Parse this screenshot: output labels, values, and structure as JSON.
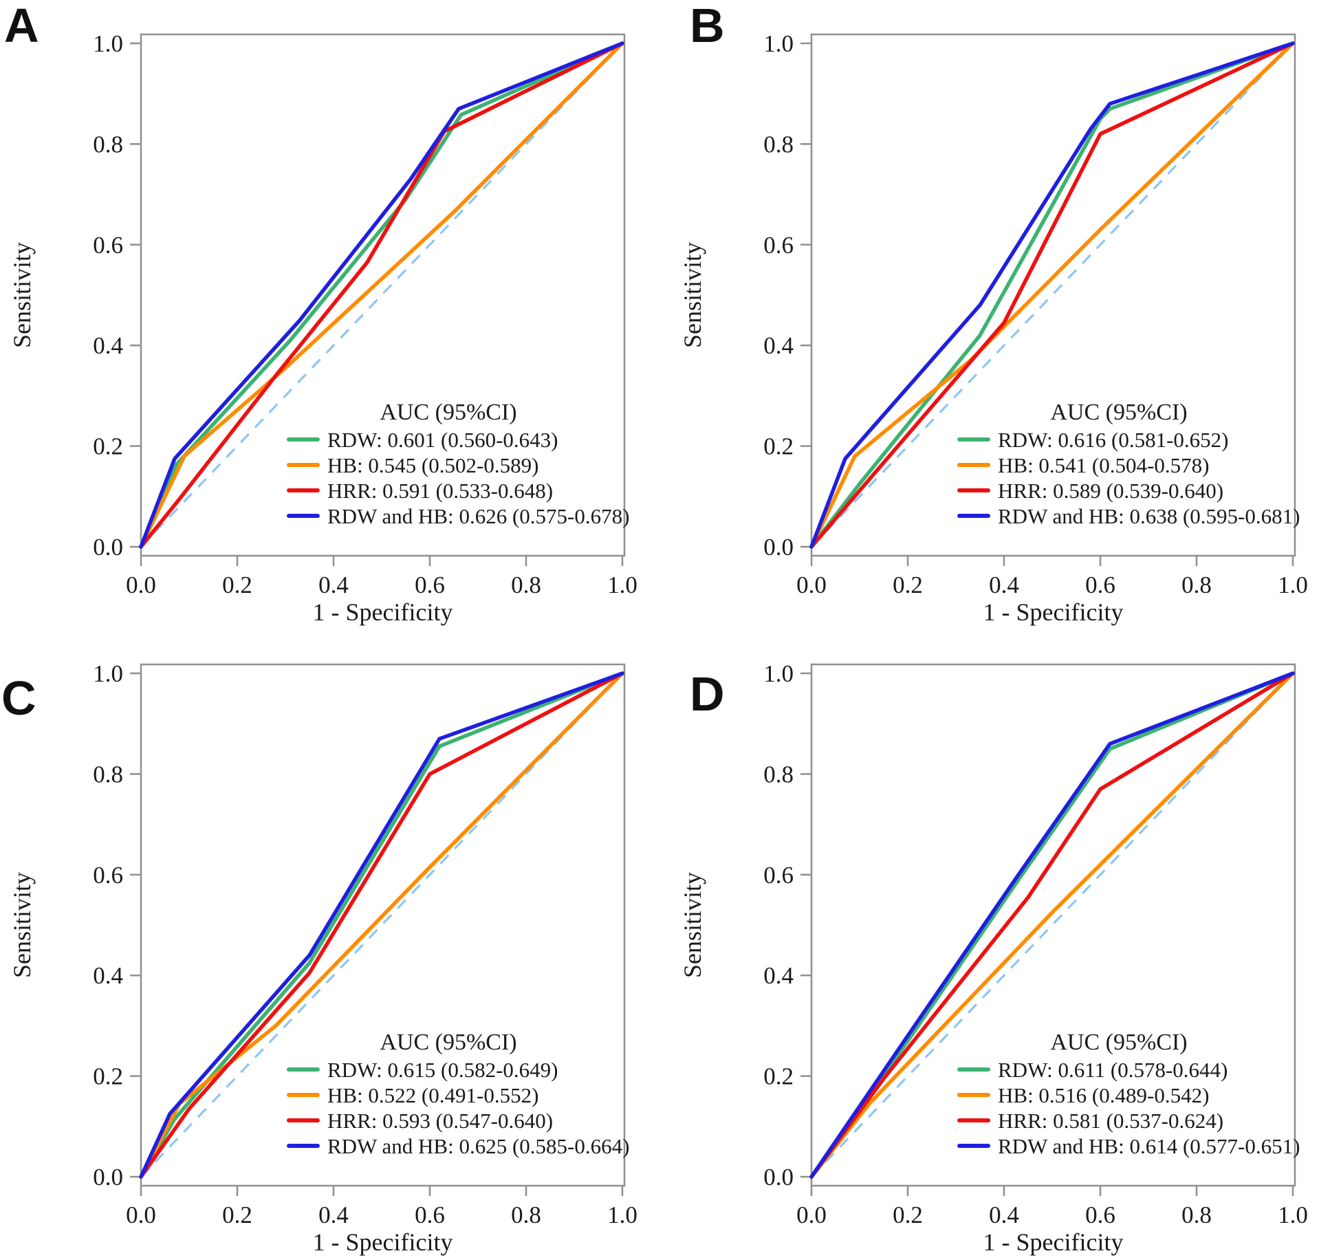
{
  "figure": {
    "background": "#ffffff",
    "panel_labels": [
      "A",
      "B",
      "C",
      "D"
    ]
  },
  "colors": {
    "axis": "#8f8f8f",
    "text": "#1a1a1a",
    "reference_line": "#8ec6f2",
    "rdw": "#3cb371",
    "hb": "#ff8c00",
    "hrr": "#ee1111",
    "rdw_and_hb": "#1f1fe0"
  },
  "axes": {
    "x_label": "1 - Specificity",
    "y_label": "Sensitivity",
    "x_ticks": [
      "0.0",
      "0.2",
      "0.4",
      "0.6",
      "0.8",
      "1.0"
    ],
    "y_ticks": [
      "0.0",
      "0.2",
      "0.4",
      "0.6",
      "0.8",
      "1.0"
    ],
    "x_range": [
      0,
      1
    ],
    "y_range": [
      0,
      1
    ],
    "grid": false
  },
  "legend": {
    "title": "AUC (95%CI)",
    "position": "bottom-right-inside"
  },
  "reference_line": {
    "style": "dashed",
    "from": [
      0,
      0
    ],
    "to": [
      1,
      1
    ]
  },
  "chart_data": [
    {
      "type": "line",
      "panel_label": "A",
      "xlabel": "1 - Specificity",
      "ylabel": "Sensitivity",
      "xlim": [
        0,
        1
      ],
      "ylim": [
        0,
        1
      ],
      "series": [
        {
          "name": "RDW",
          "color": "#3cb371",
          "auc": 0.601,
          "ci": "0.560-0.643",
          "label": "RDW: 0.601 (0.560-0.643)",
          "points": [
            [
              0,
              0
            ],
            [
              0.075,
              0.165
            ],
            [
              0.31,
              0.41
            ],
            [
              0.55,
              0.69
            ],
            [
              0.665,
              0.858
            ],
            [
              1,
              1
            ]
          ]
        },
        {
          "name": "HB",
          "color": "#ff8c00",
          "auc": 0.545,
          "ci": "0.502-0.589",
          "label": "HB: 0.545 (0.502-0.589)",
          "points": [
            [
              0,
              0
            ],
            [
              0.09,
              0.18
            ],
            [
              0.3,
              0.355
            ],
            [
              0.65,
              0.665
            ],
            [
              1,
              1
            ]
          ]
        },
        {
          "name": "HRR",
          "color": "#ee1111",
          "auc": 0.591,
          "ci": "0.533-0.648",
          "label": "HRR: 0.591 (0.533-0.648)",
          "points": [
            [
              0,
              0
            ],
            [
              0.08,
              0.095
            ],
            [
              0.28,
              0.34
            ],
            [
              0.47,
              0.565
            ],
            [
              0.63,
              0.825
            ],
            [
              1,
              1
            ]
          ]
        },
        {
          "name": "RDW and HB",
          "color": "#1f1fe0",
          "auc": 0.626,
          "ci": "0.575-0.678",
          "label": "RDW and HB: 0.626 (0.575-0.678)",
          "points": [
            [
              0,
              0
            ],
            [
              0.07,
              0.175
            ],
            [
              0.33,
              0.45
            ],
            [
              0.56,
              0.73
            ],
            [
              0.66,
              0.87
            ],
            [
              1,
              1
            ]
          ]
        }
      ]
    },
    {
      "type": "line",
      "panel_label": "B",
      "xlabel": "1 - Specificity",
      "ylabel": "Sensitivity",
      "xlim": [
        0,
        1
      ],
      "ylim": [
        0,
        1
      ],
      "series": [
        {
          "name": "RDW",
          "color": "#3cb371",
          "auc": 0.616,
          "ci": "0.581-0.652",
          "label": "RDW: 0.616 (0.581-0.652)",
          "points": [
            [
              0,
              0
            ],
            [
              0.1,
              0.125
            ],
            [
              0.35,
              0.42
            ],
            [
              0.6,
              0.85
            ],
            [
              0.62,
              0.87
            ],
            [
              1,
              1
            ]
          ]
        },
        {
          "name": "HB",
          "color": "#ff8c00",
          "auc": 0.541,
          "ci": "0.504-0.578",
          "label": "HB: 0.541 (0.504-0.578)",
          "points": [
            [
              0,
              0
            ],
            [
              0.09,
              0.18
            ],
            [
              0.33,
              0.37
            ],
            [
              0.6,
              0.63
            ],
            [
              1,
              1
            ]
          ]
        },
        {
          "name": "HRR",
          "color": "#ee1111",
          "auc": 0.589,
          "ci": "0.539-0.640",
          "label": "HRR: 0.589 (0.539-0.640)",
          "points": [
            [
              0,
              0
            ],
            [
              0.13,
              0.145
            ],
            [
              0.4,
              0.445
            ],
            [
              0.6,
              0.82
            ],
            [
              1,
              1
            ]
          ]
        },
        {
          "name": "RDW and HB",
          "color": "#1f1fe0",
          "auc": 0.638,
          "ci": "0.595-0.681",
          "label": "RDW and HB: 0.638 (0.595-0.681)",
          "points": [
            [
              0,
              0
            ],
            [
              0.07,
              0.175
            ],
            [
              0.35,
              0.48
            ],
            [
              0.58,
              0.83
            ],
            [
              0.62,
              0.88
            ],
            [
              1,
              1
            ]
          ]
        }
      ]
    },
    {
      "type": "line",
      "panel_label": "C",
      "xlabel": "1 - Specificity",
      "ylabel": "Sensitivity",
      "xlim": [
        0,
        1
      ],
      "ylim": [
        0,
        1
      ],
      "series": [
        {
          "name": "RDW",
          "color": "#3cb371",
          "auc": 0.615,
          "ci": "0.582-0.649",
          "label": "RDW: 0.615 (0.582-0.649)",
          "points": [
            [
              0,
              0
            ],
            [
              0.07,
              0.115
            ],
            [
              0.35,
              0.425
            ],
            [
              0.62,
              0.855
            ],
            [
              1,
              1
            ]
          ]
        },
        {
          "name": "HB",
          "color": "#ff8c00",
          "auc": 0.522,
          "ci": "0.491-0.552",
          "label": "HB: 0.522 (0.491-0.552)",
          "points": [
            [
              0,
              0
            ],
            [
              0.08,
              0.145
            ],
            [
              0.28,
              0.3
            ],
            [
              0.6,
              0.615
            ],
            [
              1,
              1
            ]
          ]
        },
        {
          "name": "HRR",
          "color": "#ee1111",
          "auc": 0.593,
          "ci": "0.547-0.640",
          "label": "HRR: 0.593 (0.547-0.640)",
          "points": [
            [
              0,
              0
            ],
            [
              0.1,
              0.135
            ],
            [
              0.35,
              0.405
            ],
            [
              0.6,
              0.8
            ],
            [
              1,
              1
            ]
          ]
        },
        {
          "name": "RDW and HB",
          "color": "#1f1fe0",
          "auc": 0.625,
          "ci": "0.585-0.664",
          "label": "RDW and HB: 0.625 (0.585-0.664)",
          "points": [
            [
              0,
              0
            ],
            [
              0.06,
              0.125
            ],
            [
              0.35,
              0.44
            ],
            [
              0.62,
              0.87
            ],
            [
              1,
              1
            ]
          ]
        }
      ]
    },
    {
      "type": "line",
      "panel_label": "D",
      "xlabel": "1 - Specificity",
      "ylabel": "Sensitivity",
      "xlim": [
        0,
        1
      ],
      "ylim": [
        0,
        1
      ],
      "series": [
        {
          "name": "RDW",
          "color": "#3cb371",
          "auc": 0.611,
          "ci": "0.578-0.644",
          "label": "RDW: 0.611 (0.578-0.644)",
          "points": [
            [
              0,
              0
            ],
            [
              0.2,
              0.27
            ],
            [
              0.43,
              0.59
            ],
            [
              0.62,
              0.85
            ],
            [
              1,
              1
            ]
          ]
        },
        {
          "name": "HB",
          "color": "#ff8c00",
          "auc": 0.516,
          "ci": "0.489-0.542",
          "label": "HB: 0.516 (0.489-0.542)",
          "points": [
            [
              0,
              0
            ],
            [
              0.12,
              0.145
            ],
            [
              0.5,
              0.525
            ],
            [
              1,
              1
            ]
          ]
        },
        {
          "name": "HRR",
          "color": "#ee1111",
          "auc": 0.581,
          "ci": "0.537-0.624",
          "label": "HRR: 0.581 (0.537-0.624)",
          "points": [
            [
              0,
              0
            ],
            [
              0.15,
              0.195
            ],
            [
              0.45,
              0.555
            ],
            [
              0.6,
              0.77
            ],
            [
              1,
              1
            ]
          ]
        },
        {
          "name": "RDW and HB",
          "color": "#1f1fe0",
          "auc": 0.614,
          "ci": "0.577-0.651",
          "label": "RDW and HB: 0.614 (0.577-0.651)",
          "points": [
            [
              0,
              0
            ],
            [
              0.2,
              0.28
            ],
            [
              0.43,
              0.6
            ],
            [
              0.62,
              0.86
            ],
            [
              1,
              1
            ]
          ]
        }
      ]
    }
  ]
}
